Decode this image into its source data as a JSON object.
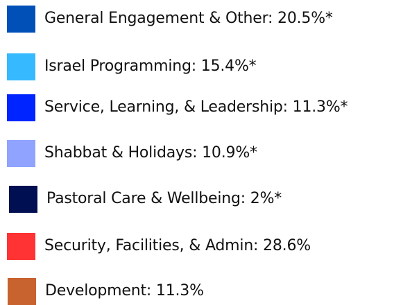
{
  "legend": {
    "items": [
      {
        "label": "General Engagement & Other: 20.5%*",
        "color": "#0150b8"
      },
      {
        "label": "Israel Programming: 15.4%*",
        "color": "#36b9ff"
      },
      {
        "label": "Service, Learning, & Leadership: 11.3%*",
        "color": "#0024ff"
      },
      {
        "label": "Shabbat & Holidays: 10.9%*",
        "color": "#8fa3ff"
      },
      {
        "label": "Pastoral Care & Wellbeing: 2%*",
        "color": "#000f52"
      },
      {
        "label": "Security, Facilities, & Admin: 28.6%",
        "color": "#ff3333"
      },
      {
        "label": "Development: 11.3%",
        "color": "#c8622e"
      }
    ]
  }
}
